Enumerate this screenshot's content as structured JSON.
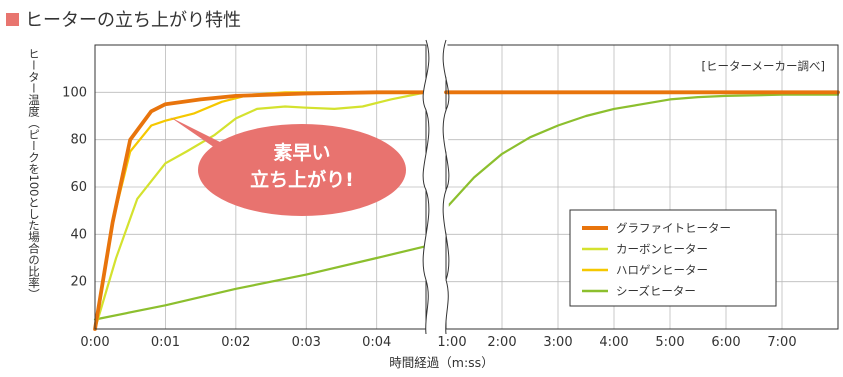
{
  "chart_data": {
    "type": "line",
    "title": "ヒーターの立ち上がり特性",
    "ylabel": "ヒーター温度（ピークを100とした場合の比率）",
    "xlabel": "時間経過（m:ss）",
    "source_note": "[ヒーターメーカー調べ]",
    "callout": {
      "line1": "素早い",
      "line2": "立ち上がり!"
    },
    "ylim": [
      0,
      120
    ],
    "y_ticks": [
      20,
      40,
      60,
      80,
      100
    ],
    "x_ticks_left": [
      "0:00",
      "0:01",
      "0:02",
      "0:03",
      "0:04"
    ],
    "x_ticks_right": [
      "1:00",
      "2:00",
      "3:00",
      "4:00",
      "5:00",
      "6:00",
      "7:00"
    ],
    "x_axis_note": "broken axis: 0:00–0:05 on left panel, 1:00–7:00 on right panel",
    "legend_position": "bottom-right",
    "series": [
      {
        "name": "グラファイトヒーター",
        "color": "#e8740c",
        "left": [
          [
            0,
            0
          ],
          [
            0.25,
            45
          ],
          [
            0.5,
            80
          ],
          [
            0.8,
            92
          ],
          [
            1,
            95
          ],
          [
            1.5,
            97
          ],
          [
            2,
            98.5
          ],
          [
            3,
            99.5
          ],
          [
            4,
            100
          ],
          [
            4.7,
            100
          ]
        ],
        "right": [
          [
            0,
            100
          ],
          [
            1,
            100
          ],
          [
            2,
            100
          ],
          [
            3,
            100
          ],
          [
            4,
            100
          ],
          [
            5,
            100
          ],
          [
            6,
            100
          ],
          [
            7,
            100
          ]
        ]
      },
      {
        "name": "カーボンヒーター",
        "color": "#d4e22f",
        "left": [
          [
            0,
            0
          ],
          [
            0.3,
            30
          ],
          [
            0.6,
            55
          ],
          [
            1,
            70
          ],
          [
            1.3,
            75
          ],
          [
            1.7,
            82
          ],
          [
            2,
            89
          ],
          [
            2.3,
            93
          ],
          [
            2.7,
            94
          ],
          [
            3,
            93.5
          ],
          [
            3.4,
            93
          ],
          [
            3.8,
            94
          ],
          [
            4.2,
            97
          ],
          [
            4.7,
            100
          ]
        ],
        "right": [
          [
            0,
            100
          ],
          [
            1,
            100
          ],
          [
            2,
            100
          ],
          [
            3,
            100
          ],
          [
            4,
            100
          ],
          [
            5,
            100
          ],
          [
            6,
            100
          ],
          [
            7,
            100
          ]
        ]
      },
      {
        "name": "ハロゲンヒーター",
        "color": "#f5c800",
        "left": [
          [
            0,
            0
          ],
          [
            0.25,
            45
          ],
          [
            0.5,
            75
          ],
          [
            0.8,
            86
          ],
          [
            1,
            88
          ],
          [
            1.4,
            91
          ],
          [
            1.8,
            96
          ],
          [
            2.2,
            99
          ],
          [
            2.7,
            100
          ],
          [
            4.7,
            100
          ]
        ],
        "right": [
          [
            0,
            100
          ],
          [
            1,
            100
          ],
          [
            2,
            100
          ],
          [
            3,
            100
          ],
          [
            4,
            100
          ],
          [
            5,
            100
          ],
          [
            6,
            100
          ],
          [
            7,
            100
          ]
        ]
      },
      {
        "name": "シーズヒーター",
        "color": "#8cbf2e",
        "left": [
          [
            0,
            4
          ],
          [
            1,
            10
          ],
          [
            2,
            17
          ],
          [
            3,
            23
          ],
          [
            4,
            30
          ],
          [
            4.7,
            35
          ]
        ],
        "right": [
          [
            0,
            51
          ],
          [
            0.5,
            64
          ],
          [
            1,
            74
          ],
          [
            1.5,
            81
          ],
          [
            2,
            86
          ],
          [
            2.5,
            90
          ],
          [
            3,
            93
          ],
          [
            3.5,
            95
          ],
          [
            4,
            97
          ],
          [
            4.5,
            98
          ],
          [
            5,
            98.5
          ],
          [
            6,
            99
          ],
          [
            7,
            99
          ]
        ]
      }
    ]
  }
}
